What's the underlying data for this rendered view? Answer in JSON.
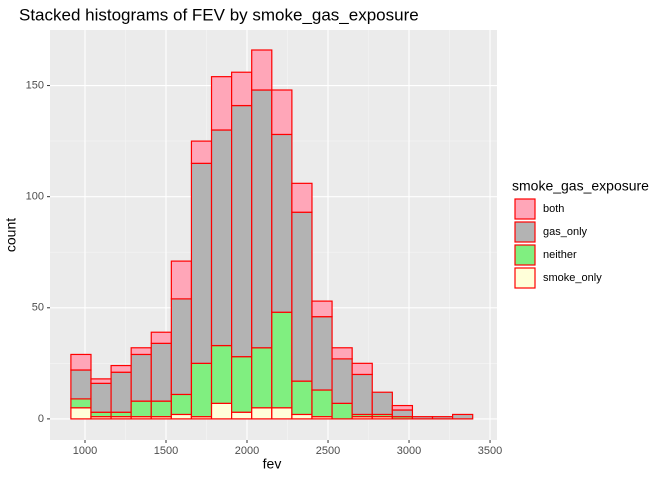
{
  "chart_data": {
    "type": "stacked_histogram",
    "title": "Stacked histograms of FEV by smoke_gas_exposure",
    "x_label": "fev",
    "y_label": "count",
    "legend_title": "smoke_gas_exposure",
    "bins": [
      913,
      1037,
      1161,
      1285,
      1409,
      1533,
      1657,
      1781,
      1905,
      2029,
      2153,
      2277,
      2401,
      2525,
      2649,
      2773,
      2897,
      3021,
      3145,
      3269,
      3393
    ],
    "series": [
      {
        "name": "both",
        "color": "#ffa6b8",
        "values": [
          7,
          2,
          3,
          3,
          5,
          17,
          10,
          24,
          15,
          18,
          20,
          13,
          7,
          5,
          5,
          0,
          2,
          0,
          0,
          0
        ]
      },
      {
        "name": "gas_only",
        "color": "#b3b3b3",
        "values": [
          13,
          13,
          18,
          21,
          26,
          43,
          90,
          97,
          113,
          116,
          80,
          76,
          33,
          20,
          18,
          10,
          3,
          1,
          1,
          2
        ]
      },
      {
        "name": "neither",
        "color": "#80ef80",
        "values": [
          4,
          2,
          2,
          7,
          7,
          9,
          24,
          26,
          25,
          27,
          43,
          15,
          12,
          7,
          1,
          1,
          1,
          0,
          0,
          0
        ]
      },
      {
        "name": "smoke_only",
        "color": "#ffffd9",
        "values": [
          5,
          1,
          1,
          1,
          1,
          2,
          1,
          7,
          3,
          5,
          5,
          2,
          1,
          0,
          1,
          1,
          0,
          0,
          0,
          0
        ]
      }
    ],
    "outline_color": "#ff0000",
    "xlim": [
      784,
      3543
    ],
    "ylim": [
      -9.5,
      175
    ],
    "xticks": [
      1000,
      1500,
      2000,
      2500,
      3000,
      3500
    ],
    "yticks": [
      0,
      50,
      100,
      150
    ],
    "grid": true,
    "legend_position": "right"
  }
}
